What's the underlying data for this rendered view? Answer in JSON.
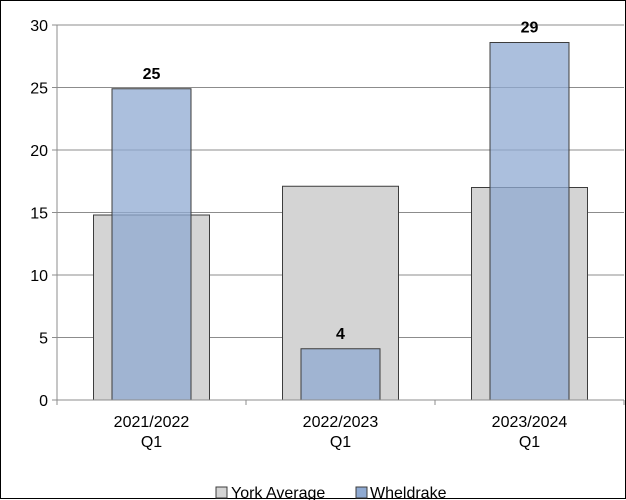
{
  "chart_data": {
    "type": "bar",
    "categories": [
      [
        "2021/2022",
        "Q1"
      ],
      [
        "2022/2023",
        "Q1"
      ],
      [
        "2023/2024",
        "Q1"
      ]
    ],
    "series": [
      {
        "name": "York Average",
        "values": [
          14.8,
          17.1,
          17.0
        ],
        "color": "#d4d4d4",
        "stroke": "#3c3c3c"
      },
      {
        "name": "Wheldrake",
        "values": [
          24.9,
          4.1,
          28.6
        ],
        "color": "#8faad2",
        "stroke": "#3c3c3c",
        "data_labels": [
          "25",
          "4",
          "29"
        ]
      }
    ],
    "title": "",
    "xlabel": "",
    "ylabel": "",
    "ylim": [
      0,
      30
    ],
    "yticks": [
      "0",
      "5",
      "10",
      "15",
      "20",
      "25",
      "30"
    ],
    "grid": true,
    "legend": "bottom",
    "overlapping_bars": true
  }
}
